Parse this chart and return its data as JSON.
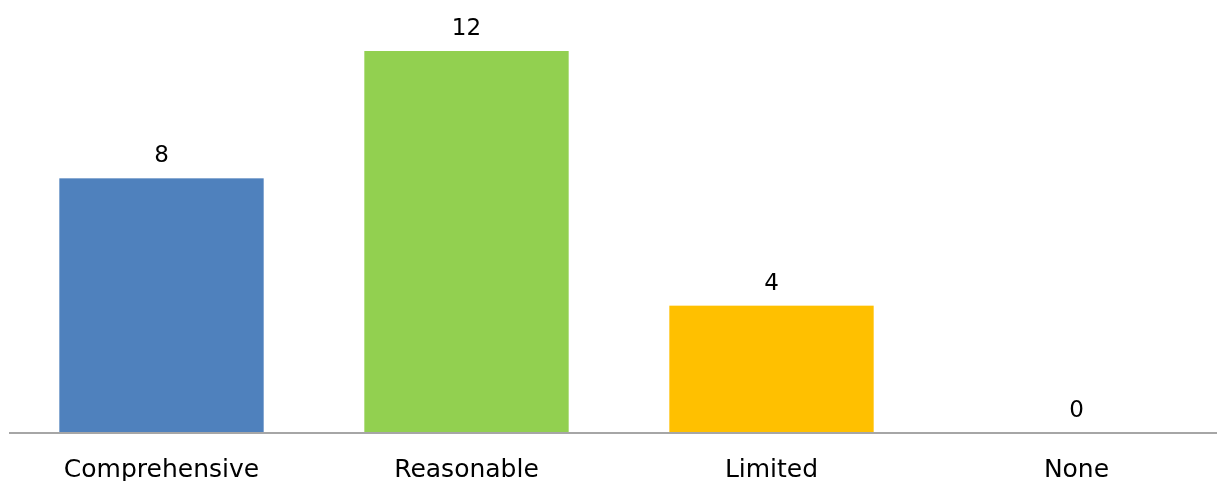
{
  "chart_data": {
    "type": "bar",
    "categories": [
      "Comprehensive",
      "Reasonable",
      "Limited",
      "None"
    ],
    "values": [
      8,
      12,
      4,
      0
    ],
    "colors": [
      "#4f81bd",
      "#92d050",
      "#ffc000",
      null
    ],
    "data_labels": true
  }
}
